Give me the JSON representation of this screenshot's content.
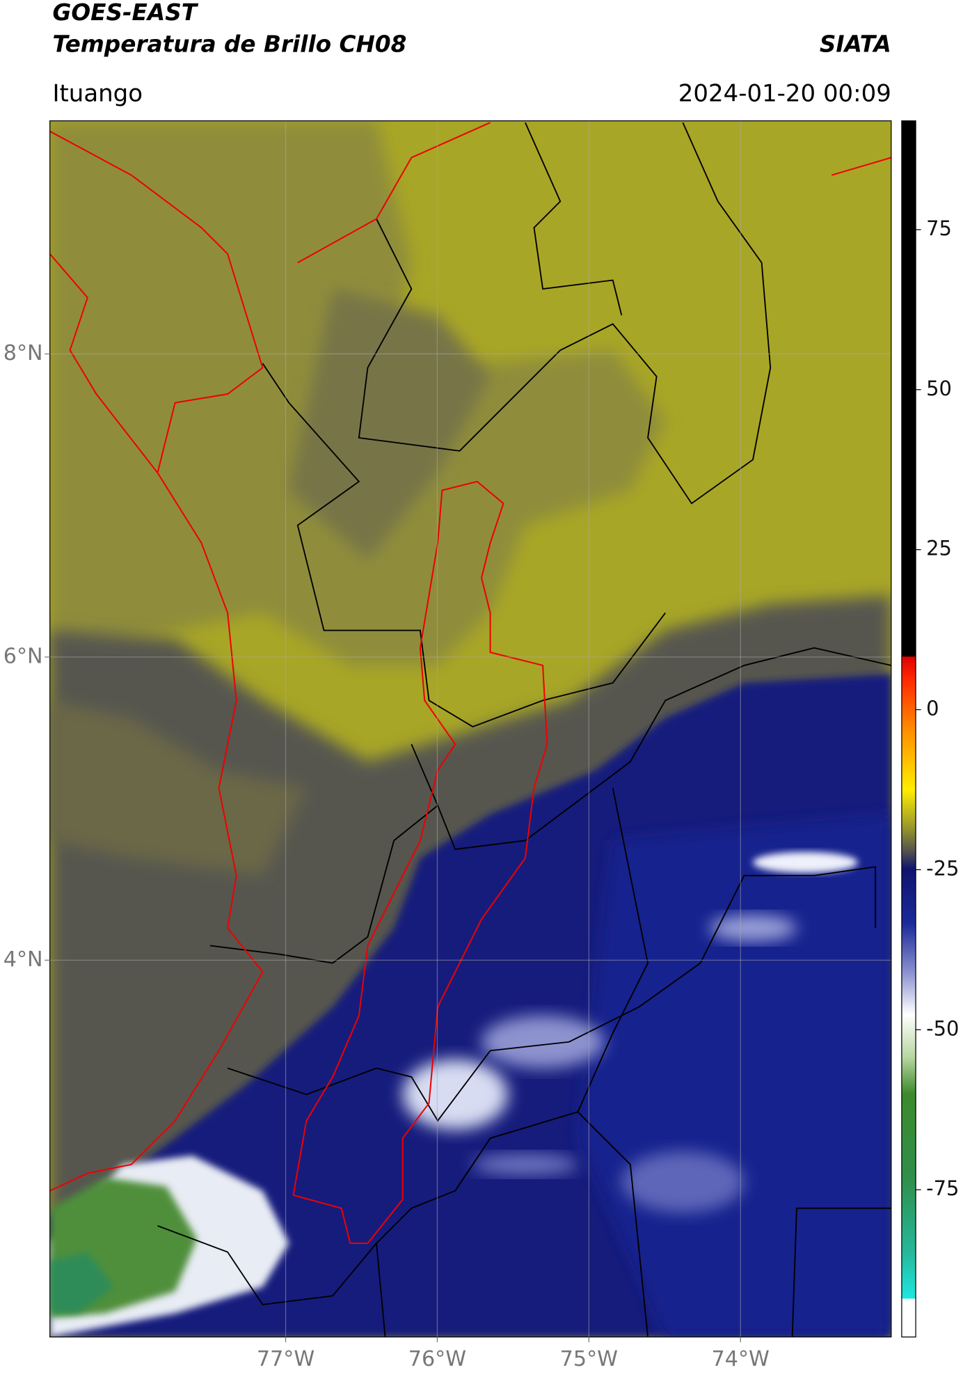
{
  "header": {
    "title": "GOES-EAST",
    "subtitle": "Temperatura de Brillo CH08",
    "source": "SIATA",
    "location": "Ituango",
    "datetime": "2024-01-20 00:09"
  },
  "map": {
    "xlim": [
      -78.555,
      -73.006
    ],
    "ylim": [
      1.514,
      9.538
    ],
    "xticks": [
      {
        "value": -77,
        "label": "77°W"
      },
      {
        "value": -76,
        "label": "76°W"
      },
      {
        "value": -75,
        "label": "75°W"
      },
      {
        "value": -74,
        "label": "74°W"
      }
    ],
    "yticks": [
      {
        "value": 8,
        "label": "8°N"
      },
      {
        "value": 6,
        "label": "6°N"
      },
      {
        "value": 4,
        "label": "4°N"
      }
    ],
    "grid": true
  },
  "colorbar": {
    "lim": [
      -98,
      92
    ],
    "ticks": [
      75,
      50,
      25,
      0,
      -25,
      -50,
      -75
    ]
  }
}
